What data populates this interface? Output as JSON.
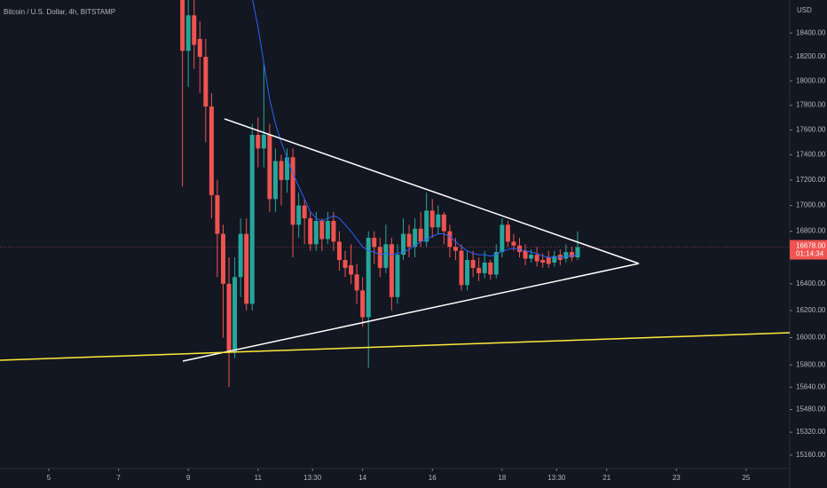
{
  "chart_data": {
    "type": "candlestick",
    "title": "Bitcoin / U.S. Dollar, 4h, BITSTAMP",
    "y_axis_label": "USD",
    "log": true,
    "grid": false,
    "up_color": "#26a69a",
    "down_color": "#ef5350",
    "x": [
      8.833,
      9.0,
      9.167,
      9.333,
      9.5,
      9.667,
      9.833,
      10.0,
      10.167,
      10.333,
      10.5,
      10.667,
      10.833,
      11.0,
      11.167,
      11.333,
      11.5,
      11.667,
      11.833,
      12.0,
      12.167,
      12.333,
      12.5,
      12.667,
      12.833,
      13.0,
      13.167,
      13.333,
      13.5,
      13.667,
      13.833,
      14.0,
      14.167,
      14.333,
      14.5,
      14.667,
      14.833,
      15.0,
      15.167,
      15.333,
      15.5,
      15.667,
      15.833,
      16.0,
      16.167,
      16.333,
      16.5,
      16.667,
      16.833,
      17.0,
      17.167,
      17.333,
      17.5,
      17.667,
      17.833,
      18.0,
      18.167,
      18.333,
      18.5,
      18.667,
      18.833,
      19.0,
      19.167,
      19.333,
      19.5,
      19.667,
      19.833,
      20.0,
      20.167
    ],
    "open": [
      18690,
      18250,
      18550,
      18350,
      18200,
      17790,
      17080,
      16780,
      16400,
      15900,
      16450,
      16780,
      16250,
      17560,
      17450,
      17560,
      17050,
      17350,
      17200,
      17380,
      16850,
      17000,
      16900,
      16700,
      16880,
      16740,
      16880,
      16720,
      16580,
      16540,
      16470,
      16350,
      16150,
      16750,
      16680,
      16520,
      16700,
      16300,
      16620,
      16780,
      16680,
      16820,
      16720,
      16960,
      16830,
      16930,
      16800,
      16680,
      16650,
      16390,
      16580,
      16520,
      16480,
      16560,
      16470,
      16640,
      16850,
      16720,
      16690,
      16650,
      16590,
      16620,
      16580,
      16600,
      16560,
      16620,
      16590,
      16640,
      16600
    ],
    "high": [
      18700,
      18700,
      18700,
      18500,
      18350,
      17900,
      17200,
      16850,
      16600,
      16600,
      16900,
      16900,
      17650,
      17700,
      18150,
      17650,
      17450,
      17400,
      17450,
      17450,
      17100,
      17050,
      16950,
      16950,
      16900,
      16950,
      16950,
      16800,
      16650,
      16700,
      16550,
      16450,
      16800,
      16800,
      16750,
      16850,
      16750,
      16700,
      16900,
      16850,
      16900,
      16950,
      17100,
      17050,
      17000,
      16950,
      16850,
      16750,
      16700,
      16650,
      16650,
      16600,
      16650,
      16580,
      16700,
      16900,
      16880,
      16780,
      16750,
      16700,
      16660,
      16680,
      16630,
      16650,
      16650,
      16660,
      16700,
      16680,
      16800
    ],
    "low": [
      17150,
      17950,
      18100,
      17900,
      17500,
      16900,
      16450,
      16000,
      15640,
      15850,
      16300,
      16200,
      16200,
      17300,
      17300,
      16950,
      16950,
      17000,
      17100,
      16600,
      16750,
      16700,
      16650,
      16650,
      16650,
      16700,
      16650,
      16500,
      16450,
      16400,
      16250,
      16080,
      15780,
      16550,
      16450,
      16480,
      16200,
      16250,
      16580,
      16600,
      16600,
      16680,
      16680,
      16750,
      16780,
      16700,
      16600,
      16580,
      16350,
      16350,
      16450,
      16420,
      16440,
      16430,
      16440,
      16600,
      16680,
      16650,
      16600,
      16540,
      16560,
      16530,
      16520,
      16520,
      16530,
      16540,
      16560,
      16570,
      16580
    ],
    "close": [
      18250,
      18550,
      18300,
      18200,
      17790,
      17080,
      16780,
      16400,
      15900,
      16450,
      16780,
      16250,
      17560,
      17450,
      17560,
      17050,
      17350,
      17200,
      17380,
      16850,
      17000,
      16900,
      16700,
      16880,
      16740,
      16880,
      16720,
      16580,
      16520,
      16470,
      16350,
      16150,
      16750,
      16680,
      16520,
      16700,
      16300,
      16620,
      16780,
      16680,
      16820,
      16720,
      16960,
      16830,
      16930,
      16800,
      16680,
      16650,
      16390,
      16580,
      16520,
      16480,
      16560,
      16470,
      16640,
      16850,
      16720,
      16690,
      16640,
      16590,
      16620,
      16570,
      16560,
      16550,
      16610,
      16580,
      16640,
      16600,
      16678
    ],
    "overlays": [
      {
        "type": "line",
        "color": "#2962ff",
        "values": [
          null,
          null,
          null,
          null,
          null,
          null,
          null,
          null,
          null,
          null,
          null,
          null,
          18700,
          18450,
          18150,
          17850,
          17650,
          17500,
          17380,
          17250,
          17150,
          17050,
          16950,
          16900,
          16880,
          16900,
          16920,
          16900,
          16850,
          16800,
          16740,
          16680,
          16650,
          16640,
          16620,
          16630,
          16620,
          16630,
          16640,
          16660,
          16690,
          16720,
          16740,
          16760,
          16780,
          16780,
          16760,
          16720,
          16680,
          16650,
          16630,
          16620,
          16620,
          16610,
          16620,
          16650,
          16660,
          16670,
          16660,
          16650,
          16640,
          16630,
          16610,
          16600,
          16600,
          16600,
          16610,
          16610,
          16620
        ]
      }
    ],
    "last_price": {
      "value": 16678,
      "label": "16678.00"
    },
    "countdown": "01:14:34",
    "xlim": [
      3.6,
      26.25
    ],
    "xticks": [
      5,
      7,
      9,
      11,
      {
        "value": 12.5625,
        "label": "13:30"
      },
      14,
      16,
      18,
      {
        "value": 19.5625,
        "label": "13:30"
      },
      21,
      23,
      25
    ],
    "ylim": [
      15067,
      18681
    ],
    "yticks": [
      {
        "value": 18400,
        "label": "18400.00"
      },
      {
        "value": 18200,
        "label": "18200.00"
      },
      {
        "value": 18000,
        "label": "18000.00"
      },
      {
        "value": 17800,
        "label": "17800.00"
      },
      {
        "value": 17600,
        "label": "17600.00"
      },
      {
        "value": 17400,
        "label": "17400.00"
      },
      {
        "value": 17200,
        "label": "17200.00"
      },
      {
        "value": 17000,
        "label": "17000.00"
      },
      {
        "value": 16800,
        "label": "16800.00"
      },
      {
        "value": 16400,
        "label": "16400.00"
      },
      {
        "value": 16200,
        "label": "16200.00"
      },
      {
        "value": 16000,
        "label": "16000.00"
      },
      {
        "value": 15800,
        "label": "15800.00"
      },
      {
        "value": 15640,
        "label": "15640.00"
      },
      {
        "value": 15480,
        "label": "15480.00"
      },
      {
        "value": 15320,
        "label": "15320.00"
      },
      {
        "value": 15160,
        "label": "15160.00"
      }
    ]
  }
}
